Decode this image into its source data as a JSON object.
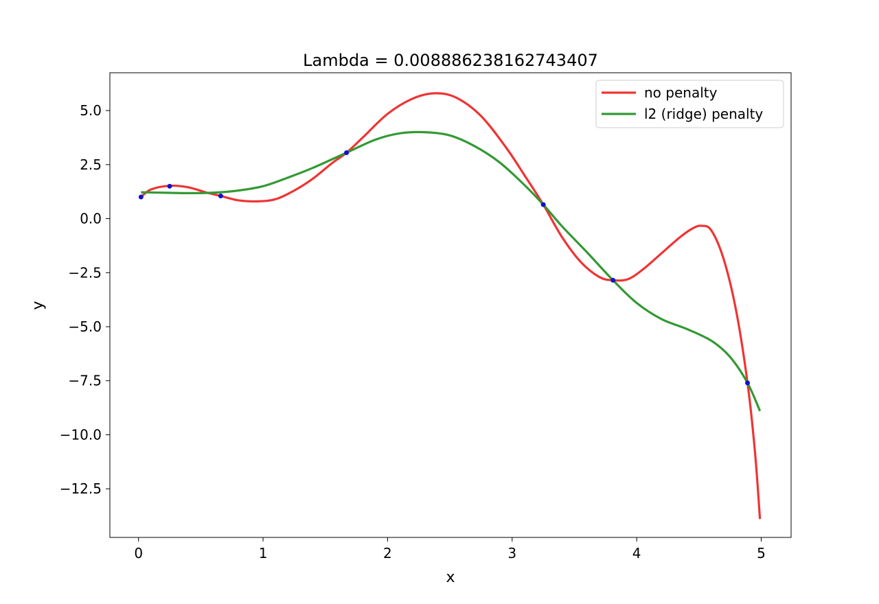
{
  "chart_data": {
    "type": "line",
    "title": "Lambda = 0.008886238162743407",
    "xlabel": "x",
    "ylabel": "y",
    "xlim": [
      -0.23,
      5.24
    ],
    "ylim": [
      -14.75,
      6.75
    ],
    "xticks": [
      0,
      1,
      2,
      3,
      4,
      5
    ],
    "xtick_labels": [
      "0",
      "1",
      "2",
      "3",
      "4",
      "5"
    ],
    "yticks": [
      5.0,
      2.5,
      0.0,
      -2.5,
      -5.0,
      -7.5,
      -10.0,
      -12.5
    ],
    "ytick_labels": [
      "5.0",
      "2.5",
      "0.0",
      "−2.5",
      "−5.0",
      "−7.5",
      "−10.0",
      "−12.5"
    ],
    "grid": false,
    "legend_position": "top-right",
    "legend": [
      {
        "label": "no penalty",
        "color": "#f03333"
      },
      {
        "label": "l2 (ridge) penalty",
        "color": "#339933"
      }
    ],
    "points": {
      "color": "#1111cc",
      "x": [
        0.02,
        0.25,
        0.66,
        1.67,
        3.25,
        3.81,
        4.89
      ],
      "y": [
        1.0,
        1.5,
        1.05,
        3.05,
        0.65,
        -2.85,
        -7.6
      ]
    },
    "series": [
      {
        "name": "no penalty",
        "color": "#f03333",
        "x": [
          0.02,
          0.1,
          0.25,
          0.4,
          0.55,
          0.66,
          0.8,
          0.95,
          1.1,
          1.25,
          1.4,
          1.55,
          1.67,
          1.8,
          2.0,
          2.2,
          2.38,
          2.55,
          2.75,
          2.95,
          3.1,
          3.25,
          3.4,
          3.55,
          3.7,
          3.81,
          3.93,
          4.05,
          4.2,
          4.35,
          4.45,
          4.52,
          4.6,
          4.7,
          4.8,
          4.89,
          4.95,
          4.99
        ],
        "y": [
          1.0,
          1.35,
          1.52,
          1.45,
          1.2,
          1.05,
          0.85,
          0.8,
          0.9,
          1.3,
          1.85,
          2.55,
          3.05,
          3.75,
          4.85,
          5.55,
          5.8,
          5.6,
          4.75,
          3.3,
          2.0,
          0.65,
          -0.85,
          -2.0,
          -2.7,
          -2.85,
          -2.8,
          -2.35,
          -1.6,
          -0.85,
          -0.45,
          -0.33,
          -0.55,
          -1.9,
          -4.3,
          -7.6,
          -10.8,
          -13.9
        ]
      },
      {
        "name": "l2 (ridge) penalty",
        "color": "#339933",
        "x": [
          0.02,
          0.2,
          0.4,
          0.6,
          0.8,
          1.0,
          1.2,
          1.4,
          1.67,
          1.9,
          2.1,
          2.3,
          2.5,
          2.7,
          2.9,
          3.1,
          3.25,
          3.4,
          3.6,
          3.81,
          4.0,
          4.2,
          4.4,
          4.6,
          4.75,
          4.89,
          4.99
        ],
        "y": [
          1.22,
          1.2,
          1.18,
          1.2,
          1.3,
          1.5,
          1.9,
          2.35,
          3.05,
          3.65,
          3.95,
          4.0,
          3.85,
          3.35,
          2.6,
          1.55,
          0.65,
          -0.35,
          -1.55,
          -2.85,
          -3.9,
          -4.65,
          -5.1,
          -5.65,
          -6.4,
          -7.6,
          -8.9
        ]
      }
    ]
  }
}
